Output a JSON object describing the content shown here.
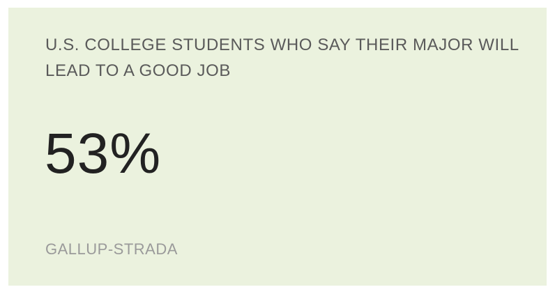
{
  "card": {
    "title": "U.S. COLLEGE STUDENTS WHO SAY THEIR MAJOR WILL LEAD TO A GOOD JOB",
    "stat_value": "53%",
    "source": "GALLUP-STRADA"
  },
  "colors": {
    "card_background": "#ebf2de",
    "title_text": "#5a5a5a",
    "stat_text": "#222222",
    "source_text": "#9a9a9a"
  }
}
